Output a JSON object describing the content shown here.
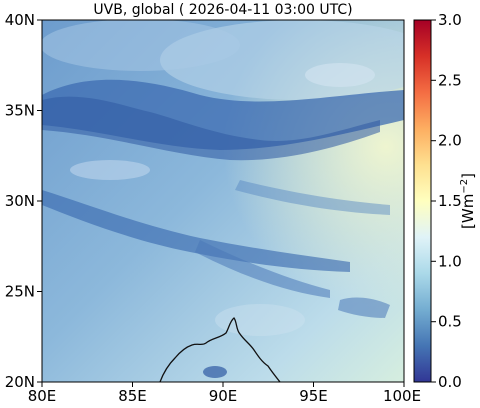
{
  "title": "UVB, global ( 2026-04-11 03:00 UTC)",
  "colorbar": {
    "label_main": "[Wm",
    "label_exp": "−2",
    "label_close": "]",
    "min": 0.0,
    "max": 3.0,
    "ticks": [
      "0.0",
      "0.5",
      "1.0",
      "1.5",
      "2.0",
      "2.5",
      "3.0"
    ],
    "colormap": [
      "#313695",
      "#4575b4",
      "#74add1",
      "#abd9e9",
      "#e0f3f8",
      "#ffffbf",
      "#fee090",
      "#fdae61",
      "#f46d43",
      "#d73027",
      "#a50026"
    ]
  },
  "map": {
    "lon_range": [
      80,
      100
    ],
    "lat_range": [
      20,
      40
    ],
    "x_ticks": [
      "80E",
      "85E",
      "90E",
      "95E",
      "100E"
    ],
    "y_ticks": [
      "20N",
      "25N",
      "30N",
      "35N",
      "40N"
    ],
    "field_range": [
      0.3,
      1.6
    ],
    "features": [
      "cloud band across 30–36N (low UVB)",
      "clearer sky south-east (higher UVB)",
      "coastline near 87–92E, 20–23N"
    ]
  }
}
